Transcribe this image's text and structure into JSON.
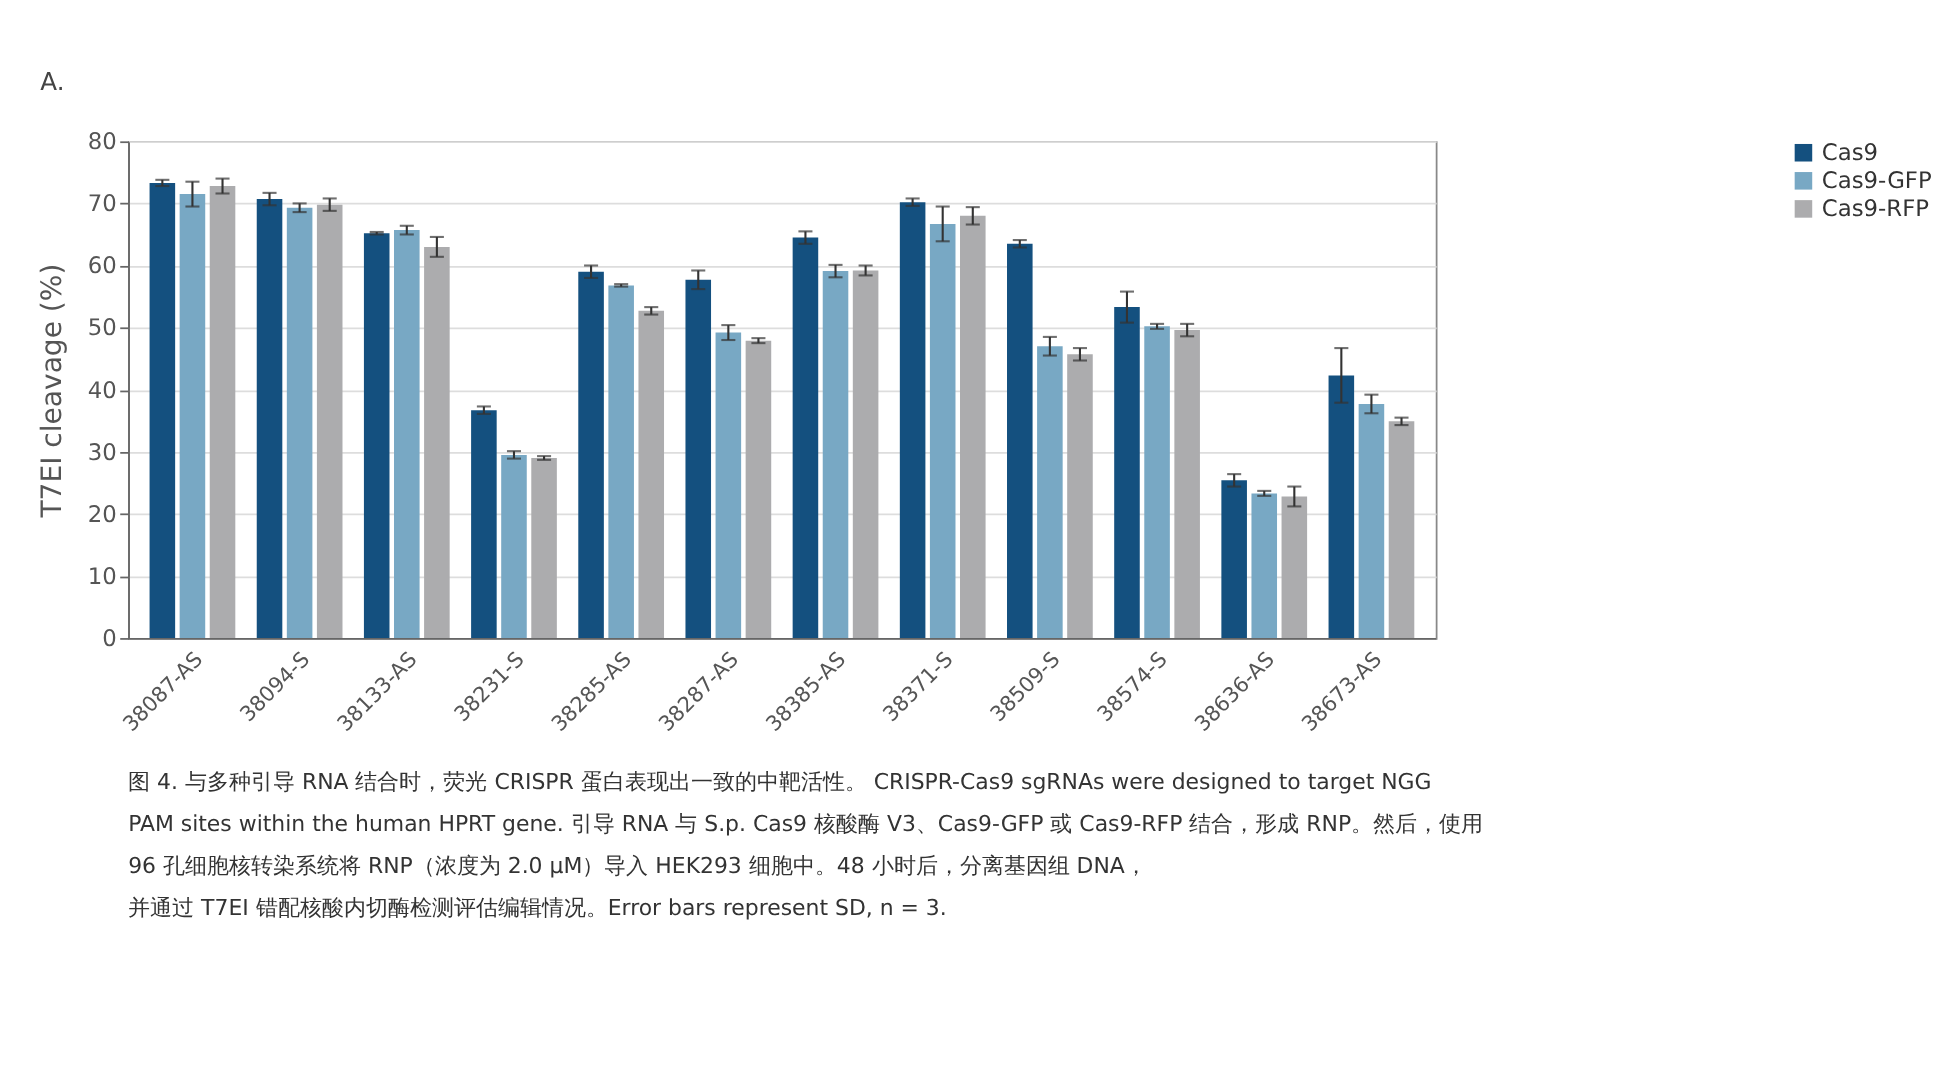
{
  "chart_data": {
    "type": "bar",
    "categories": [
      "38087-AS",
      "38094-S",
      "38133-AS",
      "38231-S",
      "38285-AS",
      "38287-AS",
      "38385-AS",
      "38371-S",
      "38509-S",
      "38574-S",
      "38636-AS",
      "38673-AS"
    ],
    "series": [
      {
        "name": "Cas9",
        "color": "#14507f",
        "values": [
          73.3,
          70.7,
          65.2,
          36.7,
          59.0,
          57.7,
          64.5,
          70.2,
          63.5,
          53.3,
          25.4,
          42.3
        ],
        "errors": [
          0.5,
          1.0,
          0.2,
          0.6,
          1.0,
          1.5,
          1.0,
          0.6,
          0.6,
          2.5,
          1.0,
          4.4
        ]
      },
      {
        "name": "Cas9-GFP",
        "color": "#78a8c4",
        "values": [
          71.5,
          69.3,
          65.7,
          29.5,
          56.8,
          49.2,
          59.1,
          66.7,
          47.0,
          50.2,
          23.3,
          37.7
        ],
        "errors": [
          2.0,
          0.7,
          0.7,
          0.6,
          0.2,
          1.2,
          1.0,
          2.8,
          1.5,
          0.4,
          0.4,
          1.5
        ]
      },
      {
        "name": "Cas9-RFP",
        "color": "#acacae",
        "values": [
          72.8,
          69.8,
          63.0,
          29.0,
          52.7,
          47.9,
          59.2,
          68.0,
          45.7,
          49.6,
          22.8,
          34.9
        ],
        "errors": [
          1.2,
          1.0,
          1.6,
          0.3,
          0.6,
          0.4,
          0.8,
          1.4,
          1.0,
          1.0,
          1.6,
          0.6
        ]
      }
    ],
    "ylabel": "T7EI cleavage (%)",
    "ylim": [
      0,
      80
    ],
    "yticks": [
      0,
      10,
      20,
      30,
      40,
      50,
      60,
      70,
      80
    ],
    "grid": "y",
    "legend": "top right",
    "annotations": [
      "A.",
      "图 4. 与多种引导 RNA 结合时，荧光 CRISPR 蛋白表现出一致的中靶活性。 CRISPR-Cas9 sgRNAs were designed to target NGG",
      "PAM sites within the human HPRT gene. 引导 RNA 与 S.p. Cas9 核酸酶 V3、Cas9-GFP 或 Cas9-RFP 结合，形成 RNP。然后，使用",
      "96 孔细胞核转染系统将 RNP（浓度为 2.0 μM）导入 HEK293 细胞中。48 小时后，分离基因组 DNA，",
      "并通过 T7EI 错配核酸内切酶检测评估编辑情况。Error bars represent SD, n = 3."
    ]
  }
}
